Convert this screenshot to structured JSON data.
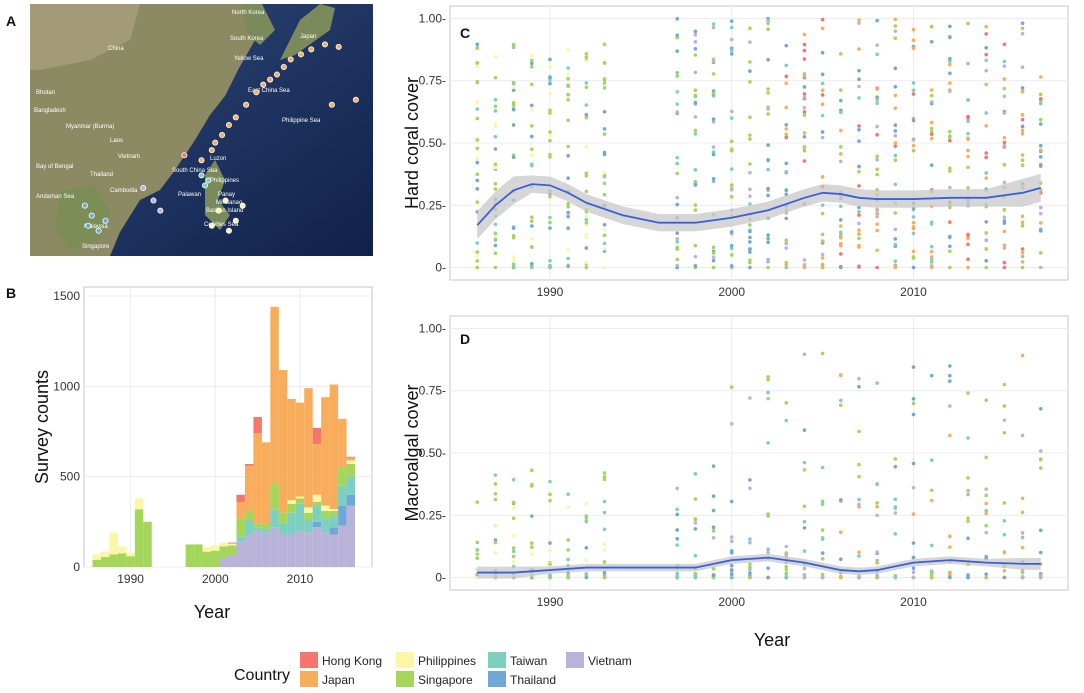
{
  "panel_labels": {
    "a": "A",
    "b": "B",
    "c": "C",
    "d": "D"
  },
  "colors": {
    "Hong Kong": "#f4766d",
    "Japan": "#f8ad5c",
    "Philippines": "#fbf7a6",
    "Singapore": "#a3d65a",
    "Taiwan": "#7dcfc0",
    "Thailand": "#6fa8d6",
    "Vietnam": "#b9b3d9",
    "smooth": "#3a5fd9",
    "band": "#c8c8c8"
  },
  "map": {
    "labels": [
      "North Korea",
      "South Korea",
      "China",
      "Japan",
      "Yellow Sea",
      "East China Sea",
      "Bhutan",
      "Bangladesh",
      "Myanmar (Burma)",
      "Laos",
      "Vietnam",
      "Thailand",
      "Cambodia",
      "Philippines",
      "Philippine Sea",
      "Malaysia",
      "Singapore",
      "Bay of Bengal",
      "Andaman Sea",
      "South China Sea",
      "Mindanao",
      "Panay",
      "Palawan",
      "Luzon",
      "Celebes Sea",
      "Basilan Island"
    ],
    "site_groups": [
      {
        "country": "Japan",
        "sites": [
          [
            0.5,
            0.62
          ],
          [
            0.6,
            0.45
          ],
          [
            0.72,
            0.28
          ],
          [
            0.82,
            0.18
          ],
          [
            0.76,
            0.22
          ],
          [
            0.66,
            0.35
          ],
          [
            0.56,
            0.52
          ],
          [
            0.53,
            0.58
          ],
          [
            0.63,
            0.4
          ],
          [
            0.7,
            0.3
          ],
          [
            0.79,
            0.2
          ],
          [
            0.86,
            0.16
          ],
          [
            0.58,
            0.48
          ],
          [
            0.68,
            0.32
          ],
          [
            0.74,
            0.25
          ],
          [
            0.9,
            0.17
          ],
          [
            0.88,
            0.4
          ],
          [
            0.95,
            0.38
          ],
          [
            0.54,
            0.55
          ]
        ]
      },
      {
        "country": "Taiwan",
        "sites": [
          [
            0.5,
            0.68
          ],
          [
            0.52,
            0.7
          ],
          [
            0.51,
            0.72
          ]
        ]
      },
      {
        "country": "Philippines",
        "sites": [
          [
            0.55,
            0.82
          ],
          [
            0.6,
            0.86
          ],
          [
            0.57,
            0.78
          ],
          [
            0.53,
            0.88
          ],
          [
            0.62,
            0.8
          ],
          [
            0.58,
            0.9
          ]
        ]
      },
      {
        "country": "Thailand",
        "sites": [
          [
            0.16,
            0.8
          ],
          [
            0.18,
            0.84
          ],
          [
            0.17,
            0.88
          ],
          [
            0.2,
            0.9
          ],
          [
            0.22,
            0.86
          ]
        ]
      },
      {
        "country": "Vietnam",
        "sites": [
          [
            0.33,
            0.73
          ],
          [
            0.36,
            0.78
          ],
          [
            0.38,
            0.82
          ]
        ]
      },
      {
        "country": "Hong Kong",
        "sites": [
          [
            0.45,
            0.6
          ]
        ]
      }
    ]
  },
  "legend": {
    "title": "Country",
    "entries": [
      "Hong Kong",
      "Japan",
      "Philippines",
      "Singapore",
      "Taiwan",
      "Thailand",
      "Vietnam"
    ]
  },
  "chart_data": [
    {
      "panel": "B",
      "type": "bar",
      "stacked": true,
      "xlabel": "Year",
      "ylabel": "Survey counts",
      "xlim": [
        1984.5,
        2018.5
      ],
      "ylim": [
        0,
        1550
      ],
      "xticks": [
        1990,
        2000,
        2010
      ],
      "yticks": [
        0,
        500,
        1000,
        1500
      ],
      "series_order": [
        "Vietnam",
        "Thailand",
        "Taiwan",
        "Singapore",
        "Philippines",
        "Japan",
        "Hong Kong"
      ],
      "bars": [
        {
          "year": 1986,
          "Singapore": 40,
          "Philippines": 30
        },
        {
          "year": 1987,
          "Singapore": 55,
          "Philippines": 30
        },
        {
          "year": 1988,
          "Singapore": 70,
          "Philippines": 120
        },
        {
          "year": 1989,
          "Singapore": 75,
          "Philippines": 40
        },
        {
          "year": 1990,
          "Singapore": 60,
          "Philippines": 20
        },
        {
          "year": 1991,
          "Singapore": 320,
          "Philippines": 60
        },
        {
          "year": 1992,
          "Singapore": 250
        },
        {
          "year": 1997,
          "Singapore": 125
        },
        {
          "year": 1998,
          "Singapore": 125
        },
        {
          "year": 1999,
          "Singapore": 85,
          "Philippines": 25
        },
        {
          "year": 2000,
          "Singapore": 90,
          "Philippines": 30
        },
        {
          "year": 2001,
          "Vietnam": 50,
          "Singapore": 65,
          "Philippines": 20
        },
        {
          "year": 2002,
          "Vietnam": 65,
          "Singapore": 55,
          "Philippines": 10,
          "Hong Kong": 5
        },
        {
          "year": 2003,
          "Vietnam": 140,
          "Taiwan": 30,
          "Singapore": 100,
          "Japan": 90,
          "Hong Kong": 40
        },
        {
          "year": 2004,
          "Vietnam": 180,
          "Taiwan": 80,
          "Singapore": 50,
          "Japan": 250,
          "Hong Kong": 10
        },
        {
          "year": 2005,
          "Vietnam": 200,
          "Taiwan": 20,
          "Singapore": 20,
          "Japan": 500,
          "Hong Kong": 90
        },
        {
          "year": 2006,
          "Vietnam": 190,
          "Taiwan": 20,
          "Singapore": 30,
          "Japan": 450
        },
        {
          "year": 2007,
          "Vietnam": 220,
          "Taiwan": 100,
          "Singapore": 140,
          "Japan": 980
        },
        {
          "year": 2008,
          "Vietnam": 180,
          "Taiwan": 60,
          "Singapore": 60,
          "Japan": 790
        },
        {
          "year": 2009,
          "Vietnam": 180,
          "Taiwan": 120,
          "Singapore": 50,
          "Philippines": 20,
          "Japan": 560
        },
        {
          "year": 2010,
          "Vietnam": 200,
          "Taiwan": 150,
          "Singapore": 30,
          "Philippines": 10,
          "Japan": 520
        },
        {
          "year": 2011,
          "Vietnam": 190,
          "Taiwan": 70,
          "Singapore": 40,
          "Philippines": 30,
          "Japan": 660
        },
        {
          "year": 2012,
          "Vietnam": 220,
          "Thailand": 30,
          "Taiwan": 90,
          "Singapore": 20,
          "Philippines": 40,
          "Japan": 280,
          "Hong Kong": 90
        },
        {
          "year": 2013,
          "Vietnam": 190,
          "Taiwan": 80,
          "Singapore": 40,
          "Philippines": 30,
          "Japan": 600
        },
        {
          "year": 2014,
          "Vietnam": 180,
          "Thailand": 40,
          "Taiwan": 60,
          "Singapore": 30,
          "Philippines": 10,
          "Japan": 690
        },
        {
          "year": 2015,
          "Vietnam": 230,
          "Thailand": 110,
          "Taiwan": 110,
          "Singapore": 100,
          "Japan": 270
        },
        {
          "year": 2016,
          "Vietnam": 340,
          "Thailand": 60,
          "Taiwan": 100,
          "Singapore": 70,
          "Philippines": 20,
          "Japan": 15,
          "Hong Kong": 5
        }
      ]
    },
    {
      "panel": "C",
      "type": "scatter",
      "xlabel": "",
      "ylabel": "Hard coral cover",
      "xlim": [
        1984.5,
        2018.5
      ],
      "ylim": [
        -0.05,
        1.05
      ],
      "xticks": [
        1990,
        2000,
        2010
      ],
      "yticks": [
        0,
        0.25,
        0.5,
        0.75,
        1.0
      ],
      "ytick_labels": [
        "0-",
        "0.25-",
        "0.50-",
        "0.75-",
        "1.00-"
      ],
      "survey_years": [
        1986,
        1987,
        1988,
        1989,
        1990,
        1991,
        1992,
        1993,
        1997,
        1998,
        1999,
        2000,
        2001,
        2002,
        2003,
        2004,
        2005,
        2006,
        2007,
        2008,
        2009,
        2010,
        2011,
        2012,
        2013,
        2014,
        2015,
        2016,
        2017
      ],
      "smooth": {
        "x": [
          1986,
          1987,
          1988,
          1989,
          1990,
          1991,
          1992,
          1994,
          1996,
          1998,
          2000,
          2002,
          2004,
          2005,
          2006,
          2007,
          2008,
          2010,
          2012,
          2014,
          2016,
          2017
        ],
        "y": [
          0.17,
          0.25,
          0.31,
          0.335,
          0.33,
          0.3,
          0.26,
          0.21,
          0.18,
          0.18,
          0.2,
          0.23,
          0.28,
          0.3,
          0.295,
          0.28,
          0.275,
          0.275,
          0.28,
          0.28,
          0.3,
          0.32
        ]
      }
    },
    {
      "panel": "D",
      "type": "scatter",
      "xlabel": "Year",
      "ylabel": "Macroalgal cover",
      "xlim": [
        1984.5,
        2018.5
      ],
      "ylim": [
        -0.05,
        1.05
      ],
      "xticks": [
        1990,
        2000,
        2010
      ],
      "yticks": [
        0,
        0.25,
        0.5,
        0.75,
        1.0
      ],
      "ytick_labels": [
        "0-",
        "0.25-",
        "0.50-",
        "0.75-",
        "1.00-"
      ],
      "survey_years": [
        1986,
        1987,
        1988,
        1989,
        1990,
        1991,
        1992,
        1993,
        1997,
        1998,
        1999,
        2000,
        2001,
        2002,
        2003,
        2004,
        2005,
        2006,
        2007,
        2008,
        2009,
        2010,
        2011,
        2012,
        2013,
        2014,
        2015,
        2016,
        2017
      ],
      "smooth": {
        "x": [
          1986,
          1988,
          1990,
          1992,
          1994,
          1996,
          1998,
          2000,
          2002,
          2004,
          2006,
          2007,
          2008,
          2010,
          2012,
          2014,
          2016,
          2017
        ],
        "y": [
          0.02,
          0.02,
          0.03,
          0.04,
          0.04,
          0.04,
          0.04,
          0.07,
          0.08,
          0.06,
          0.03,
          0.025,
          0.03,
          0.06,
          0.07,
          0.06,
          0.055,
          0.055
        ]
      }
    }
  ]
}
